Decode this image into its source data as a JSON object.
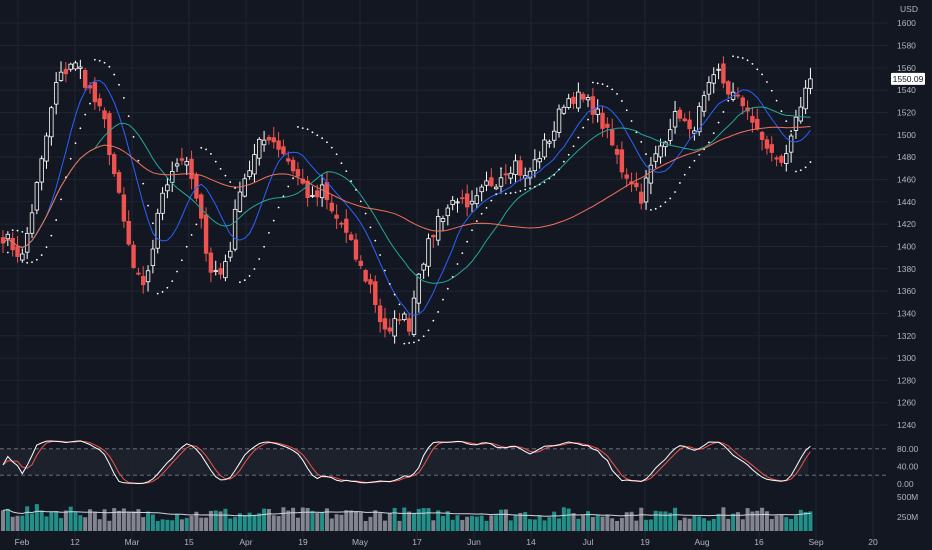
{
  "price_scale": {
    "currency": "USD",
    "last_price": "1550.09",
    "ticks": [
      "1600",
      "1580",
      "1560",
      "1540",
      "1520",
      "1500",
      "1480",
      "1460",
      "1440",
      "1420",
      "1400",
      "1380",
      "1360",
      "1340",
      "1320",
      "1300",
      "1280",
      "1260",
      "1240"
    ]
  },
  "stoch_scale": {
    "ticks": [
      "80.00",
      "40.00",
      "0.00"
    ]
  },
  "volume_scale": {
    "ticks": [
      "500M",
      "250M"
    ]
  },
  "time_axis": {
    "labels": [
      "Feb",
      "12",
      "Mar",
      "15",
      "Apr",
      "19",
      "May",
      "17",
      "Jun",
      "14",
      "Jul",
      "19",
      "Aug",
      "16",
      "Sep",
      "20"
    ]
  },
  "colors": {
    "background": "#131722",
    "up": "#ffffff",
    "down": "#ef5350",
    "ma_fast": "#2962ff",
    "ma_mid": "#26a69a",
    "ma_slow": "#f2705a",
    "sar": "#ffffff",
    "stoch_k": "#ffffff",
    "stoch_d": "#ef5350",
    "volume_up": "#26a69a",
    "volume_down": "#b2b5be"
  },
  "chart_data": [
    {
      "type": "candlestick",
      "pane": "price",
      "x": [
        "Feb",
        "12",
        "Mar",
        "15",
        "Apr",
        "19",
        "May",
        "17",
        "Jun",
        "14",
        "Jul",
        "19",
        "Aug",
        "16",
        "Sep",
        "20"
      ],
      "ylim": [
        1232,
        1610
      ],
      "ylabel": "USD",
      "grid": true,
      "close_anchors": [
        [
          0,
          1410
        ],
        [
          4,
          1390
        ],
        [
          8,
          1475
        ],
        [
          11,
          1545
        ],
        [
          14,
          1565
        ],
        [
          16,
          1558
        ],
        [
          19,
          1530
        ],
        [
          21,
          1510
        ],
        [
          23,
          1465
        ],
        [
          25,
          1420
        ],
        [
          27,
          1380
        ],
        [
          29,
          1360
        ],
        [
          31,
          1400
        ],
        [
          33,
          1450
        ],
        [
          35,
          1470
        ],
        [
          37,
          1480
        ],
        [
          39,
          1460
        ],
        [
          41,
          1420
        ],
        [
          43,
          1380
        ],
        [
          45,
          1375
        ],
        [
          47,
          1400
        ],
        [
          49,
          1455
        ],
        [
          51,
          1470
        ],
        [
          53,
          1490
        ],
        [
          55,
          1500
        ],
        [
          58,
          1485
        ],
        [
          60,
          1470
        ],
        [
          62,
          1455
        ],
        [
          64,
          1440
        ],
        [
          66,
          1450
        ],
        [
          68,
          1430
        ],
        [
          70,
          1420
        ],
        [
          72,
          1400
        ],
        [
          74,
          1380
        ],
        [
          76,
          1365
        ],
        [
          78,
          1335
        ],
        [
          80,
          1320
        ],
        [
          82,
          1340
        ],
        [
          84,
          1330
        ],
        [
          86,
          1380
        ],
        [
          88,
          1400
        ],
        [
          90,
          1425
        ],
        [
          92,
          1435
        ],
        [
          94,
          1445
        ],
        [
          96,
          1430
        ],
        [
          98,
          1440
        ],
        [
          100,
          1455
        ],
        [
          102,
          1460
        ],
        [
          104,
          1470
        ],
        [
          106,
          1475
        ],
        [
          108,
          1460
        ],
        [
          110,
          1475
        ],
        [
          112,
          1490
        ],
        [
          114,
          1505
        ],
        [
          116,
          1530
        ],
        [
          118,
          1535
        ],
        [
          120,
          1530
        ],
        [
          122,
          1525
        ],
        [
          124,
          1510
        ],
        [
          126,
          1490
        ],
        [
          128,
          1470
        ],
        [
          130,
          1460
        ],
        [
          132,
          1445
        ],
        [
          134,
          1470
        ],
        [
          136,
          1490
        ],
        [
          138,
          1510
        ],
        [
          140,
          1520
        ],
        [
          142,
          1500
        ],
        [
          144,
          1520
        ],
        [
          146,
          1540
        ],
        [
          148,
          1555
        ],
        [
          150,
          1540
        ],
        [
          152,
          1530
        ],
        [
          154,
          1525
        ],
        [
          156,
          1500
        ],
        [
          158,
          1490
        ],
        [
          160,
          1475
        ],
        [
          162,
          1480
        ],
        [
          164,
          1520
        ],
        [
          166,
          1535
        ],
        [
          167,
          1550.09
        ]
      ],
      "moving_averages": [
        {
          "period": 10,
          "color": "#2962ff"
        },
        {
          "period": 20,
          "color": "#26a69a"
        },
        {
          "period": 50,
          "color": "#f2705a"
        }
      ],
      "parabolic_sar": true,
      "last_price": 1550.09
    },
    {
      "type": "line",
      "pane": "stochastic",
      "ylim": [
        0,
        100
      ],
      "bands": [
        20,
        80
      ],
      "series": [
        {
          "role": "%K",
          "color": "#ffffff"
        },
        {
          "role": "%D",
          "color": "#ef5350"
        }
      ]
    },
    {
      "type": "bar",
      "pane": "volume",
      "ylim": [
        0,
        550000000
      ],
      "volume_ma": true
    }
  ]
}
